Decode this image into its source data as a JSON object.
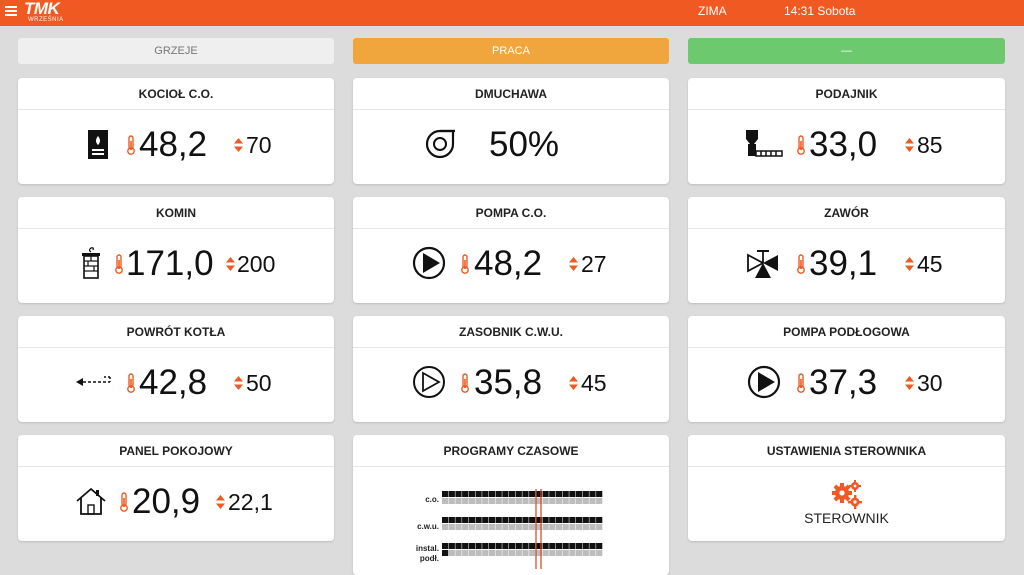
{
  "header": {
    "logo_text": "TMK",
    "logo_sub": "WRZEŚNIA",
    "season": "ZIMA",
    "clock": "14:31 Sobota"
  },
  "status": {
    "heating": "GRZEJE",
    "mode": "PRACA",
    "extra": "—"
  },
  "cards": {
    "kociol": {
      "title": "KOCIOŁ C.O.",
      "value": "48,2",
      "setpoint": "70"
    },
    "dmuchawa": {
      "title": "DMUCHAWA",
      "value": "50%"
    },
    "podajnik": {
      "title": "PODAJNIK",
      "value": "33,0",
      "setpoint": "85"
    },
    "komin": {
      "title": "KOMIN",
      "value": "171,0",
      "setpoint": "200"
    },
    "pompa_co": {
      "title": "POMPA C.O.",
      "value": "48,2",
      "setpoint": "27"
    },
    "zawor": {
      "title": "ZAWÓR",
      "value": "39,1",
      "setpoint": "45"
    },
    "powrot": {
      "title": "POWRÓT KOTŁA",
      "value": "42,8",
      "setpoint": "50"
    },
    "zasobnik": {
      "title": "ZASOBNIK C.W.U.",
      "value": "35,8",
      "setpoint": "45"
    },
    "pompa_podl": {
      "title": "POMPA PODŁOGOWA",
      "value": "37,3",
      "setpoint": "30"
    },
    "panel": {
      "title": "PANEL POKOJOWY",
      "value": "20,9",
      "setpoint": "22,1"
    },
    "programy": {
      "title": "PROGRAMY CZASOWE",
      "rows": [
        {
          "label_1": "c.o.",
          "label_2": ""
        },
        {
          "label_1": "c.w.u.",
          "label_2": ""
        },
        {
          "label_1": "instal.",
          "label_2": "podł."
        }
      ]
    },
    "ustawienia": {
      "title": "USTAWIENIA STEROWNIKA",
      "label": "STEROWNIK"
    }
  },
  "colors": {
    "accent": "#f05a22",
    "work": "#f0a63c",
    "ok": "#6cc96e"
  },
  "icons": {
    "menu": "hamburger-menu-icon",
    "boiler": "boiler-icon",
    "fan": "fan-icon",
    "feeder": "feeder-icon",
    "chimney": "chimney-icon",
    "pump": "pump-icon",
    "valve": "valve-icon",
    "return": "return-arrow-icon",
    "house": "house-icon",
    "gears": "gears-icon"
  }
}
